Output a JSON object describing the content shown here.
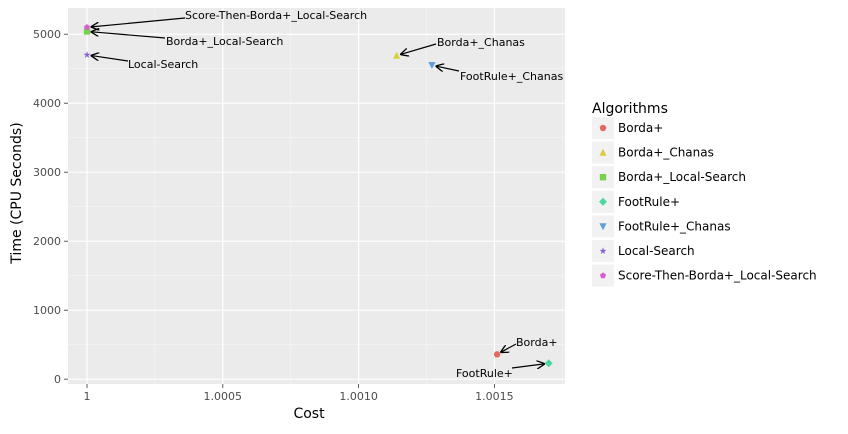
{
  "chart_data": {
    "type": "scatter",
    "title": "",
    "xlabel": "Cost",
    "ylabel": "Time (CPU Seconds)",
    "xlim": [
      0.99993,
      1.00176
    ],
    "ylim": [
      -70,
      5380
    ],
    "x_ticks": [
      1,
      1.0005,
      1.001,
      1.0015
    ],
    "x_tick_labels": [
      "1",
      "1.0005",
      "1.0010",
      "1.0015"
    ],
    "y_ticks": [
      0,
      1000,
      2000,
      3000,
      4000,
      5000
    ],
    "y_tick_labels": [
      "0",
      "1000",
      "2000",
      "3000",
      "4000",
      "5000"
    ],
    "grid": true,
    "legend": {
      "title": "Algorithms",
      "placement": "right",
      "entries": [
        {
          "label": "Borda+",
          "color": "#e06a5f",
          "shape": "circle"
        },
        {
          "label": "Borda+_Chanas",
          "color": "#dccb47",
          "shape": "triangle-up"
        },
        {
          "label": "Borda+_Local-Search",
          "color": "#78d14c",
          "shape": "square"
        },
        {
          "label": "FootRule+",
          "color": "#4cd6a0",
          "shape": "diamond"
        },
        {
          "label": "FootRule+_Chanas",
          "color": "#5f9fd6",
          "shape": "triangle-down"
        },
        {
          "label": "Local-Search",
          "color": "#8a5fd6",
          "shape": "star"
        },
        {
          "label": "Score-Then-Borda+_Local-Search",
          "color": "#d65fcf",
          "shape": "pentagon"
        }
      ]
    },
    "points": [
      {
        "series": "Borda+",
        "x": 1.00151,
        "y": 360,
        "label": "Borda+"
      },
      {
        "series": "Borda+_Chanas",
        "x": 1.00114,
        "y": 4690,
        "label": "Borda+_Chanas"
      },
      {
        "series": "Borda+_Local-Search",
        "x": 1.0,
        "y": 5040,
        "label": "Borda+_Local-Search"
      },
      {
        "series": "FootRule+",
        "x": 1.0017,
        "y": 230,
        "label": "FootRule+"
      },
      {
        "series": "FootRule+_Chanas",
        "x": 1.00127,
        "y": 4550,
        "label": "FootRule+_Chanas"
      },
      {
        "series": "Local-Search",
        "x": 1.0,
        "y": 4700,
        "label": "Local-Search"
      },
      {
        "series": "Score-Then-Borda+_Local-Search",
        "x": 1.0,
        "y": 5100,
        "label": "Score-Then-Borda+_Local-Search"
      }
    ]
  }
}
